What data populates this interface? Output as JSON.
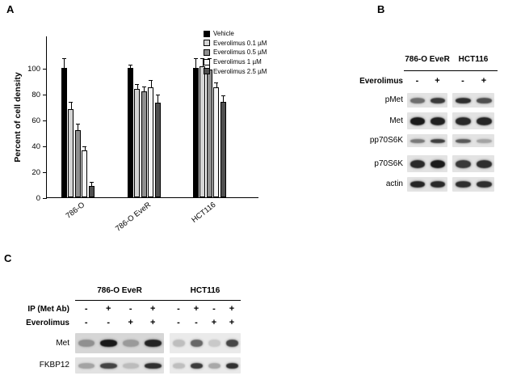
{
  "panelA": {
    "label": "A"
  },
  "chart_data": {
    "type": "bar",
    "title": "",
    "xlabel": "",
    "ylabel": "Percent of cell density",
    "ylim": [
      0,
      125
    ],
    "yticks": [
      0,
      20,
      40,
      60,
      80,
      100
    ],
    "grid": false,
    "legend_position": "upper right",
    "categories": [
      "786-O",
      "786-O EveR",
      "HCT116"
    ],
    "series": [
      {
        "name": "Vehicle",
        "color": "#000000",
        "values": [
          100,
          100,
          100
        ],
        "errors": [
          7,
          2,
          7
        ]
      },
      {
        "name": "Everolimus 0.1 µM",
        "color": "#d4d4d4",
        "values": [
          68,
          84,
          101
        ],
        "errors": [
          5,
          3,
          6
        ]
      },
      {
        "name": "Everolimus 0.5 µM",
        "color": "#8f8f8f",
        "values": [
          52,
          82,
          99
        ],
        "errors": [
          4,
          3,
          8
        ]
      },
      {
        "name": "Everolimus 1 µM",
        "color": "#f5f5f5",
        "values": [
          36,
          85,
          85
        ],
        "errors": [
          3,
          5,
          3
        ]
      },
      {
        "name": "Everolimus 2.5 µM",
        "color": "#4f4f4f",
        "values": [
          9,
          73,
          74
        ],
        "errors": [
          2,
          6,
          4
        ]
      }
    ]
  },
  "panelB": {
    "label": "B",
    "groups": [
      {
        "name": "786-O EveR"
      },
      {
        "name": "HCT116"
      }
    ],
    "sign_rows": [
      {
        "label": "Everolimus",
        "values": [
          [
            "-",
            "+"
          ],
          [
            "-",
            "+"
          ]
        ]
      }
    ],
    "rows": [
      {
        "label": "pMet",
        "band_h": 7,
        "bands": [
          [
            0.55,
            0.8
          ],
          [
            0.85,
            0.7
          ]
        ]
      },
      {
        "label": "Met",
        "band_h": 10,
        "bands": [
          [
            0.95,
            0.92
          ],
          [
            0.88,
            0.9
          ]
        ]
      },
      {
        "label": "pp70S6K",
        "band_h": 5,
        "bands": [
          [
            0.5,
            0.78
          ],
          [
            0.65,
            0.3
          ]
        ]
      },
      {
        "label": "p70S6K",
        "band_h": 10,
        "bands": [
          [
            0.88,
            0.95
          ],
          [
            0.8,
            0.85
          ]
        ]
      },
      {
        "label": "actin",
        "band_h": 8,
        "bands": [
          [
            0.9,
            0.88
          ],
          [
            0.85,
            0.85
          ]
        ]
      }
    ],
    "box_bg": "#e3e3e3"
  },
  "panelC": {
    "label": "C",
    "groups": [
      {
        "name": "786-O EveR"
      },
      {
        "name": "HCT116"
      }
    ],
    "sign_rows": [
      {
        "label": "IP (Met Ab)",
        "values": [
          [
            "-",
            "+",
            "-",
            "+"
          ],
          [
            "-",
            "+",
            "-",
            "+"
          ]
        ]
      },
      {
        "label": "Everolimus",
        "values": [
          [
            "-",
            "-",
            "+",
            "+"
          ],
          [
            "-",
            "-",
            "+",
            "+"
          ]
        ]
      }
    ],
    "rows": [
      {
        "label": "Met",
        "band_h": 9,
        "bg": [
          "#d6d6d6",
          "#eaeaea"
        ],
        "bands": [
          [
            0.35,
            0.95,
            0.3,
            0.9
          ],
          [
            0.2,
            0.6,
            0.15,
            0.75
          ]
        ]
      },
      {
        "label": "FKBP12",
        "band_h": 7,
        "bg": [
          "#e2e2e2",
          "#eaeaea"
        ],
        "bands": [
          [
            0.3,
            0.75,
            0.18,
            0.85
          ],
          [
            0.2,
            0.8,
            0.3,
            0.85
          ]
        ]
      }
    ],
    "box_bg": "#e6e6e6"
  }
}
